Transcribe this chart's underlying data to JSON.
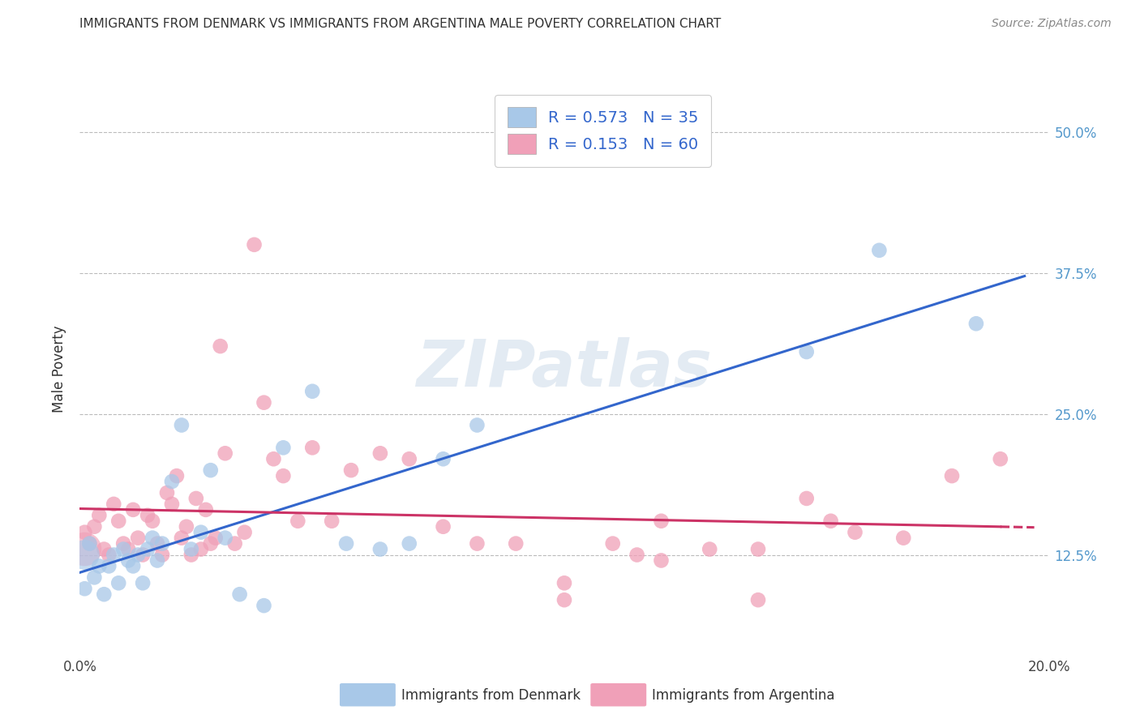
{
  "title": "IMMIGRANTS FROM DENMARK VS IMMIGRANTS FROM ARGENTINA MALE POVERTY CORRELATION CHART",
  "source": "Source: ZipAtlas.com",
  "ylabel": "Male Poverty",
  "xlim": [
    0.0,
    0.2
  ],
  "ylim": [
    0.04,
    0.54
  ],
  "xtick_labels": [
    "0.0%",
    "",
    "",
    "",
    "20.0%"
  ],
  "xtick_values": [
    0.0,
    0.05,
    0.1,
    0.15,
    0.2
  ],
  "ytick_labels": [
    "12.5%",
    "25.0%",
    "37.5%",
    "50.0%"
  ],
  "ytick_values": [
    0.125,
    0.25,
    0.375,
    0.5
  ],
  "watermark": "ZIPatlas",
  "denmark_color": "#a8c8e8",
  "argentina_color": "#f0a0b8",
  "denmark_line_color": "#3366cc",
  "argentina_line_color": "#cc3366",
  "denmark_R": 0.573,
  "denmark_N": 35,
  "argentina_R": 0.153,
  "argentina_N": 60,
  "legend_label_denmark": "Immigrants from Denmark",
  "legend_label_argentina": "Immigrants from Argentina",
  "denmark_scatter_x": [
    0.001,
    0.002,
    0.003,
    0.004,
    0.005,
    0.006,
    0.007,
    0.008,
    0.009,
    0.01,
    0.011,
    0.012,
    0.013,
    0.014,
    0.015,
    0.016,
    0.017,
    0.019,
    0.021,
    0.023,
    0.025,
    0.027,
    0.03,
    0.033,
    0.038,
    0.042,
    0.048,
    0.055,
    0.062,
    0.068,
    0.075,
    0.082,
    0.15,
    0.165,
    0.185
  ],
  "denmark_scatter_y": [
    0.095,
    0.135,
    0.105,
    0.115,
    0.09,
    0.115,
    0.125,
    0.1,
    0.13,
    0.12,
    0.115,
    0.125,
    0.1,
    0.13,
    0.14,
    0.12,
    0.135,
    0.19,
    0.24,
    0.13,
    0.145,
    0.2,
    0.14,
    0.09,
    0.08,
    0.22,
    0.27,
    0.135,
    0.13,
    0.135,
    0.21,
    0.24,
    0.305,
    0.395,
    0.33
  ],
  "argentina_scatter_x": [
    0.001,
    0.002,
    0.003,
    0.004,
    0.005,
    0.006,
    0.007,
    0.008,
    0.009,
    0.01,
    0.011,
    0.012,
    0.013,
    0.014,
    0.015,
    0.016,
    0.017,
    0.018,
    0.019,
    0.02,
    0.021,
    0.022,
    0.023,
    0.024,
    0.025,
    0.026,
    0.027,
    0.028,
    0.029,
    0.03,
    0.032,
    0.034,
    0.036,
    0.038,
    0.04,
    0.042,
    0.045,
    0.048,
    0.052,
    0.056,
    0.062,
    0.068,
    0.075,
    0.082,
    0.09,
    0.1,
    0.11,
    0.12,
    0.13,
    0.14,
    0.15,
    0.16,
    0.17,
    0.18,
    0.19,
    0.1,
    0.115,
    0.12,
    0.14,
    0.155
  ],
  "argentina_scatter_y": [
    0.145,
    0.135,
    0.15,
    0.16,
    0.13,
    0.125,
    0.17,
    0.155,
    0.135,
    0.13,
    0.165,
    0.14,
    0.125,
    0.16,
    0.155,
    0.135,
    0.125,
    0.18,
    0.17,
    0.195,
    0.14,
    0.15,
    0.125,
    0.175,
    0.13,
    0.165,
    0.135,
    0.14,
    0.31,
    0.215,
    0.135,
    0.145,
    0.4,
    0.26,
    0.21,
    0.195,
    0.155,
    0.22,
    0.155,
    0.2,
    0.215,
    0.21,
    0.15,
    0.135,
    0.135,
    0.085,
    0.135,
    0.155,
    0.13,
    0.13,
    0.175,
    0.145,
    0.14,
    0.195,
    0.21,
    0.1,
    0.125,
    0.12,
    0.085,
    0.155
  ],
  "grid_color": "#bbbbbb",
  "background_color": "#ffffff"
}
